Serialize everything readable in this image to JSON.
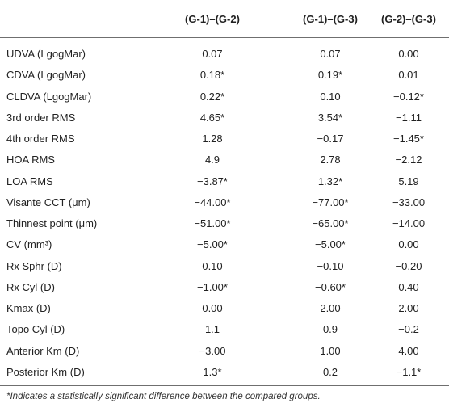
{
  "table": {
    "headers": [
      "",
      "(G-1)–(G-2)",
      "(G-1)–(G-3)",
      "(G-2)–(G-3)"
    ],
    "rows": [
      {
        "label": "UDVA (LgogMar)",
        "values": [
          "0.07",
          "0.07",
          "0.00"
        ]
      },
      {
        "label": "CDVA (LgogMar)",
        "values": [
          "0.18*",
          "0.19*",
          "0.01"
        ]
      },
      {
        "label": "CLDVA (LgogMar)",
        "values": [
          "0.22*",
          "0.10",
          "−0.12*"
        ]
      },
      {
        "label": "3rd order RMS",
        "values": [
          "4.65*",
          "3.54*",
          "−1.11"
        ]
      },
      {
        "label": "4th order RMS",
        "values": [
          "1.28",
          "−0.17",
          "−1.45*"
        ]
      },
      {
        "label": "HOA RMS",
        "values": [
          "4.9",
          "2.78",
          "−2.12"
        ]
      },
      {
        "label": "LOA RMS",
        "values": [
          "−3.87*",
          "1.32*",
          "5.19"
        ]
      },
      {
        "label": "Visante CCT (μm)",
        "values": [
          "−44.00*",
          "−77.00*",
          "−33.00"
        ]
      },
      {
        "label": "Thinnest point (μm)",
        "values": [
          "−51.00*",
          "−65.00*",
          "−14.00"
        ]
      },
      {
        "label": "CV (mm³)",
        "values": [
          "−5.00*",
          "−5.00*",
          "0.00"
        ]
      },
      {
        "label": "Rx Sphr (D)",
        "values": [
          "0.10",
          "−0.10",
          "−0.20"
        ]
      },
      {
        "label": "Rx Cyl (D)",
        "values": [
          "−1.00*",
          "−0.60*",
          "0.40"
        ]
      },
      {
        "label": "Kmax (D)",
        "values": [
          "0.00",
          "2.00",
          "2.00"
        ]
      },
      {
        "label": "Topo Cyl (D)",
        "values": [
          "1.1",
          "0.9",
          "−0.2"
        ]
      },
      {
        "label": "Anterior Km (D)",
        "values": [
          "−3.00",
          "1.00",
          "4.00"
        ]
      },
      {
        "label": "Posterior Km (D)",
        "values": [
          "1.3*",
          "0.2",
          "−1.1*"
        ]
      }
    ]
  },
  "footnote": "*Indicates a statistically significant difference between the compared groups."
}
